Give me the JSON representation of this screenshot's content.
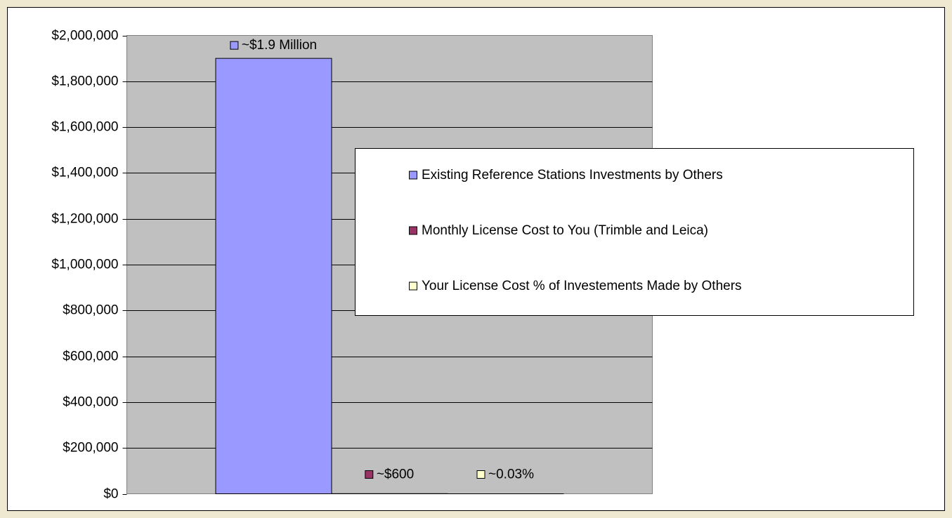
{
  "chart_data": {
    "type": "bar",
    "categories": [
      null
    ],
    "series": [
      {
        "name": "Existing Reference Stations Investments by Others",
        "color": "#9999ff",
        "values": [
          1900000
        ],
        "value_labels": [
          "~$1.9 Million"
        ]
      },
      {
        "name": "Monthly License Cost to You (Trimble and Leica)",
        "color": "#993366",
        "values": [
          600
        ],
        "value_labels": [
          "~$600"
        ]
      },
      {
        "name": "Your License Cost % of Investements Made by Others",
        "color": "#ffffcc",
        "values": [
          0.03
        ],
        "value_labels": [
          "~0.03%"
        ]
      }
    ],
    "ylim": [
      0,
      2000000
    ],
    "yticks": [
      {
        "value": 0,
        "label": "$0"
      },
      {
        "value": 200000,
        "label": "$200,000"
      },
      {
        "value": 400000,
        "label": "$400,000"
      },
      {
        "value": 600000,
        "label": "$600,000"
      },
      {
        "value": 800000,
        "label": "$800,000"
      },
      {
        "value": 1000000,
        "label": "$1,000,000"
      },
      {
        "value": 1200000,
        "label": "$1,200,000"
      },
      {
        "value": 1400000,
        "label": "$1,400,000"
      },
      {
        "value": 1600000,
        "label": "$1,600,000"
      },
      {
        "value": 1800000,
        "label": "$1,800,000"
      },
      {
        "value": 2000000,
        "label": "$2,000,000"
      }
    ],
    "grid": true,
    "legend_position": "right"
  }
}
